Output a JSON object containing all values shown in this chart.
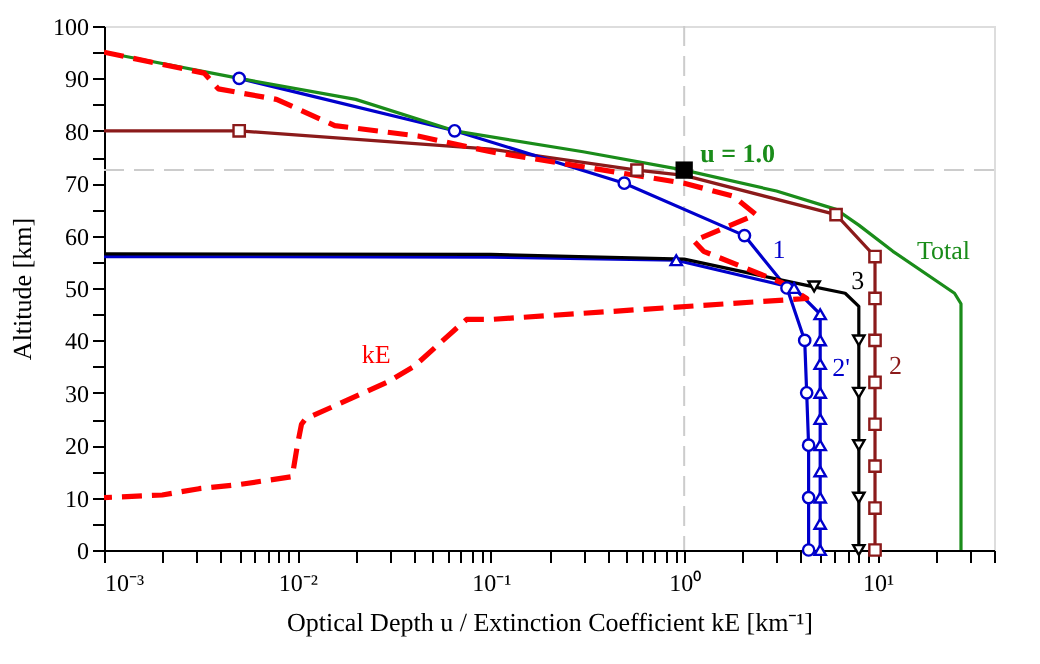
{
  "chart_data": {
    "type": "line",
    "xlabel": "Optical Depth u / Extinction Coefficient kE [km⁻¹]",
    "ylabel": "Altitude [km]",
    "log": "x",
    "xlim": [
      0.001,
      40
    ],
    "ylim": [
      0,
      100
    ],
    "xticks": [
      {
        "value": 0.001,
        "label": "10⁻³"
      },
      {
        "value": 0.002,
        "label": null
      },
      {
        "value": 0.003,
        "label": null
      },
      {
        "value": 0.004,
        "label": null
      },
      {
        "value": 0.005,
        "label": null
      },
      {
        "value": 0.006,
        "label": null
      },
      {
        "value": 0.007,
        "label": null
      },
      {
        "value": 0.008,
        "label": null
      },
      {
        "value": 0.009,
        "label": null
      },
      {
        "value": 0.01,
        "label": "10⁻²"
      },
      {
        "value": 0.02,
        "label": null
      },
      {
        "value": 0.03,
        "label": null
      },
      {
        "value": 0.04,
        "label": null
      },
      {
        "value": 0.05,
        "label": null
      },
      {
        "value": 0.06,
        "label": null
      },
      {
        "value": 0.07,
        "label": null
      },
      {
        "value": 0.08,
        "label": null
      },
      {
        "value": 0.09,
        "label": null
      },
      {
        "value": 0.1,
        "label": "10⁻¹"
      },
      {
        "value": 0.2,
        "label": null
      },
      {
        "value": 0.3,
        "label": null
      },
      {
        "value": 0.4,
        "label": null
      },
      {
        "value": 0.5,
        "label": null
      },
      {
        "value": 0.6,
        "label": null
      },
      {
        "value": 0.7,
        "label": null
      },
      {
        "value": 0.8,
        "label": null
      },
      {
        "value": 0.9,
        "label": null
      },
      {
        "value": 1,
        "label": "10⁰"
      },
      {
        "value": 2,
        "label": null
      },
      {
        "value": 3,
        "label": null
      },
      {
        "value": 4,
        "label": null
      },
      {
        "value": 5,
        "label": null
      },
      {
        "value": 6,
        "label": null
      },
      {
        "value": 7,
        "label": null
      },
      {
        "value": 8,
        "label": null
      },
      {
        "value": 9,
        "label": null
      },
      {
        "value": 10,
        "label": "10¹"
      },
      {
        "value": 20,
        "label": null
      },
      {
        "value": 30,
        "label": null
      },
      {
        "value": 40,
        "label": null
      }
    ],
    "yticks": [
      0,
      {
        "value": 5,
        "label": null
      },
      10,
      {
        "value": 15,
        "label": null
      },
      20,
      {
        "value": 25,
        "label": null
      },
      30,
      {
        "value": 35,
        "label": null
      },
      40,
      {
        "value": 45,
        "label": null
      },
      50,
      {
        "value": 55,
        "label": null
      },
      60,
      {
        "value": 65,
        "label": null
      },
      70,
      {
        "value": 75,
        "label": null
      },
      80,
      {
        "value": 85,
        "label": null
      },
      90,
      {
        "value": 95,
        "label": null
      },
      100
    ],
    "grid": false,
    "ref_lines": [
      {
        "axis": "x",
        "value": 1,
        "color": "#cccccc",
        "line_style": "dashed"
      },
      {
        "axis": "y",
        "value": 72.5,
        "color": "#cccccc",
        "line_style": "dashed"
      }
    ],
    "series": [
      {
        "name": "2",
        "color": "#8b1a1a",
        "line_style": "solid",
        "x": [
          0.001,
          0.005,
          0.1,
          0.57,
          1,
          6.1,
          9.7,
          9.7
        ],
        "values": [
          80,
          80,
          76.5,
          72.5,
          71.5,
          64,
          56,
          0
        ]
      },
      {
        "name": "1",
        "color": "#0000cc",
        "line_style": "solid",
        "x": [
          0.005,
          0.065,
          0.49,
          2.05,
          3.4,
          4.2,
          4.3,
          4.4,
          4.4
        ],
        "values": [
          90,
          80,
          70,
          60,
          50,
          40,
          30,
          20,
          0
        ]
      },
      {
        "name": "2'",
        "color": "#0000cc",
        "line_style": "solid",
        "x": [
          0.001,
          0.1,
          0.91,
          3.7,
          5.05,
          5.05
        ],
        "values": [
          56,
          55.9,
          55.3,
          50,
          45,
          0
        ]
      },
      {
        "name": "3",
        "color": "#000000",
        "line_style": "solid",
        "x": [
          0.001,
          0.1,
          1,
          4.3,
          6.8,
          8,
          8
        ],
        "values": [
          56.5,
          56.4,
          55.5,
          50.5,
          49,
          46.5,
          0
        ]
      },
      {
        "name": "Total",
        "color": "#1a8c1a",
        "line_style": "solid",
        "x": [
          0.001,
          0.005,
          0.02,
          0.065,
          0.3,
          1,
          3,
          6.1,
          8,
          12,
          25,
          27,
          27
        ],
        "values": [
          95,
          90,
          86,
          80,
          76,
          72.5,
          68.5,
          65,
          62,
          57,
          49,
          47,
          0
        ]
      },
      {
        "name": "kE",
        "color": "#ff0000",
        "line_style": "dashed",
        "x": [
          0.001,
          0.0033,
          0.0039,
          0.0078,
          0.0156,
          0.042,
          0.1,
          1,
          1.8,
          2.35,
          1.12,
          1.26,
          3.2,
          4.3,
          0.1,
          0.075,
          0.065,
          0.04,
          0.029,
          0.011,
          0.0105,
          0.01,
          0.0094,
          0.005,
          0.0031,
          0.002,
          0.001
        ],
        "values": [
          95,
          91,
          88,
          86,
          81,
          79,
          76,
          70,
          67.5,
          64,
          59,
          57,
          51,
          48,
          44,
          44,
          42,
          35,
          32,
          25,
          24,
          20,
          14,
          12.5,
          11.7,
          10.5,
          10
        ]
      },
      {
        "type": "scatter",
        "color": "#8b1a1a",
        "marker": "square",
        "x": [
          0.005,
          0.57,
          6.1,
          9.7,
          9.7,
          9.7,
          9.7,
          9.7,
          9.7,
          9.7,
          9.7
        ],
        "values": [
          80,
          72.5,
          64,
          56,
          48,
          40,
          32,
          24,
          16,
          8,
          0
        ]
      },
      {
        "type": "scatter",
        "color": "#0000cc",
        "marker": "circle",
        "x": [
          0.005,
          0.065,
          0.49,
          2.05,
          3.4,
          4.2,
          4.3,
          4.4,
          4.4,
          4.4
        ],
        "values": [
          90,
          80,
          70,
          60,
          50,
          40,
          30,
          20,
          10,
          0
        ]
      },
      {
        "type": "scatter",
        "color": "#0000cc",
        "marker": "triangle",
        "x": [
          0.91,
          3.7,
          5.05,
          5.05,
          5.05,
          5.05,
          5.05,
          5.05,
          5.05,
          5.05,
          5.05,
          5.05
        ],
        "values": [
          55.3,
          50,
          45,
          40,
          35.5,
          30,
          25,
          20,
          15,
          10,
          5,
          0
        ]
      },
      {
        "type": "scatter",
        "color": "#000000",
        "marker": "triangle-down",
        "x": [
          4.7,
          8,
          8,
          8,
          8,
          8
        ],
        "values": [
          50.3,
          40,
          30,
          20,
          10,
          0
        ]
      },
      {
        "type": "scatter",
        "color": "#000000",
        "marker": "square",
        "x": [
          1
        ],
        "values": [
          72.5
        ]
      }
    ],
    "annotations": [
      "u = 1.0"
    ]
  }
}
